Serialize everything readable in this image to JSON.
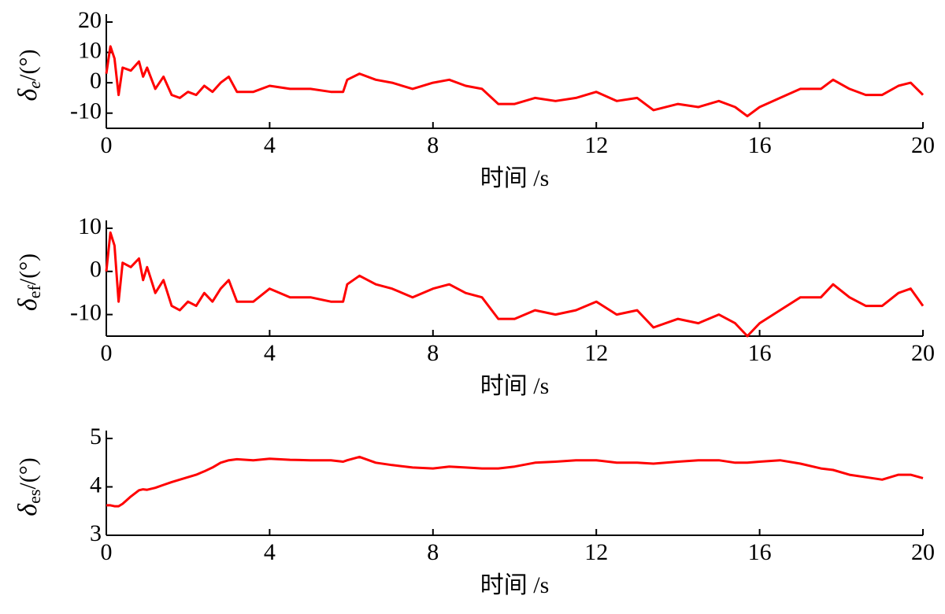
{
  "chart_data": [
    {
      "type": "line",
      "ylabel_symbol": "δ",
      "ylabel_subscript": "e",
      "ylabel_unit": "/(°)",
      "xlabel": "时间 /s",
      "xlim": [
        0,
        20
      ],
      "xticks": [
        0,
        4,
        8,
        12,
        16,
        20
      ],
      "ylim": [
        -15,
        20
      ],
      "yticks": [
        -10,
        0,
        10,
        20
      ],
      "x": [
        0,
        0.1,
        0.2,
        0.3,
        0.4,
        0.6,
        0.8,
        0.9,
        1.0,
        1.2,
        1.4,
        1.6,
        1.8,
        2.0,
        2.2,
        2.4,
        2.6,
        2.8,
        3.0,
        3.2,
        3.6,
        4.0,
        4.5,
        5.0,
        5.5,
        5.8,
        5.9,
        6.2,
        6.6,
        7.0,
        7.5,
        8.0,
        8.4,
        8.8,
        9.2,
        9.6,
        10.0,
        10.5,
        11.0,
        11.5,
        12.0,
        12.5,
        13.0,
        13.4,
        14.0,
        14.5,
        15.0,
        15.4,
        15.7,
        16.0,
        16.5,
        17.0,
        17.5,
        17.8,
        18.2,
        18.6,
        19.0,
        19.4,
        19.7,
        20.0
      ],
      "series": [
        {
          "color": "#ff0000",
          "values": [
            3,
            12,
            8,
            -4,
            5,
            4,
            7,
            2,
            5,
            -2,
            2,
            -4,
            -5,
            -3,
            -4,
            -1,
            -3,
            0,
            2,
            -3,
            -3,
            -1,
            -2,
            -2,
            -3,
            -3,
            1,
            3,
            1,
            0,
            -2,
            0,
            1,
            -1,
            -2,
            -7,
            -7,
            -5,
            -6,
            -5,
            -3,
            -6,
            -5,
            -9,
            -7,
            -8,
            -6,
            -8,
            -11,
            -8,
            -5,
            -2,
            -2,
            1,
            -2,
            -4,
            -4,
            -1,
            0,
            -4
          ]
        }
      ]
    },
    {
      "type": "line",
      "ylabel_symbol": "δ",
      "ylabel_subscript": "ef",
      "ylabel_unit": "/(°)",
      "xlabel": "时间 /s",
      "xlim": [
        0,
        20
      ],
      "xticks": [
        0,
        4,
        8,
        12,
        16,
        20
      ],
      "ylim": [
        -15,
        10
      ],
      "yticks": [
        -10,
        0,
        10
      ],
      "x": [
        0,
        0.1,
        0.2,
        0.3,
        0.4,
        0.6,
        0.8,
        0.9,
        1.0,
        1.2,
        1.4,
        1.6,
        1.8,
        2.0,
        2.2,
        2.4,
        2.6,
        2.8,
        3.0,
        3.2,
        3.6,
        4.0,
        4.5,
        5.0,
        5.5,
        5.8,
        5.9,
        6.2,
        6.6,
        7.0,
        7.5,
        8.0,
        8.4,
        8.8,
        9.2,
        9.6,
        10.0,
        10.5,
        11.0,
        11.5,
        12.0,
        12.5,
        13.0,
        13.4,
        14.0,
        14.5,
        15.0,
        15.4,
        15.7,
        16.0,
        16.5,
        17.0,
        17.5,
        17.8,
        18.2,
        18.6,
        19.0,
        19.4,
        19.7,
        20.0
      ],
      "series": [
        {
          "color": "#ff0000",
          "values": [
            0,
            9,
            6,
            -7,
            2,
            1,
            3,
            -2,
            1,
            -5,
            -2,
            -8,
            -9,
            -7,
            -8,
            -5,
            -7,
            -4,
            -2,
            -7,
            -7,
            -4,
            -6,
            -6,
            -7,
            -7,
            -3,
            -1,
            -3,
            -4,
            -6,
            -4,
            -3,
            -5,
            -6,
            -11,
            -11,
            -9,
            -10,
            -9,
            -7,
            -10,
            -9,
            -13,
            -11,
            -12,
            -10,
            -12,
            -15,
            -12,
            -9,
            -6,
            -6,
            -3,
            -6,
            -8,
            -8,
            -5,
            -4,
            -8
          ]
        }
      ]
    },
    {
      "type": "line",
      "ylabel_symbol": "δ",
      "ylabel_subscript": "es",
      "ylabel_unit": "/(°)",
      "xlabel": "时间 /s",
      "xlim": [
        0,
        20
      ],
      "xticks": [
        0,
        4,
        8,
        12,
        16,
        20
      ],
      "ylim": [
        3,
        5
      ],
      "yticks": [
        3,
        4,
        5
      ],
      "x": [
        0,
        0.1,
        0.2,
        0.3,
        0.4,
        0.6,
        0.8,
        0.9,
        1.0,
        1.2,
        1.4,
        1.6,
        1.8,
        2.0,
        2.2,
        2.4,
        2.6,
        2.8,
        3.0,
        3.2,
        3.6,
        4.0,
        4.5,
        5.0,
        5.5,
        5.8,
        5.9,
        6.2,
        6.6,
        7.0,
        7.5,
        8.0,
        8.4,
        8.8,
        9.2,
        9.6,
        10.0,
        10.5,
        11.0,
        11.5,
        12.0,
        12.5,
        13.0,
        13.4,
        14.0,
        14.5,
        15.0,
        15.4,
        15.7,
        16.0,
        16.5,
        17.0,
        17.5,
        17.8,
        18.2,
        18.6,
        19.0,
        19.4,
        19.7,
        20.0
      ],
      "series": [
        {
          "color": "#ff0000",
          "values": [
            3.62,
            3.62,
            3.6,
            3.6,
            3.65,
            3.8,
            3.93,
            3.95,
            3.94,
            3.98,
            4.04,
            4.1,
            4.15,
            4.2,
            4.25,
            4.32,
            4.4,
            4.5,
            4.55,
            4.57,
            4.55,
            4.58,
            4.56,
            4.55,
            4.55,
            4.52,
            4.55,
            4.62,
            4.5,
            4.45,
            4.4,
            4.38,
            4.42,
            4.4,
            4.38,
            4.38,
            4.42,
            4.5,
            4.52,
            4.55,
            4.55,
            4.5,
            4.5,
            4.48,
            4.52,
            4.55,
            4.55,
            4.5,
            4.5,
            4.52,
            4.55,
            4.48,
            4.38,
            4.35,
            4.25,
            4.2,
            4.15,
            4.25,
            4.25,
            4.18
          ]
        }
      ]
    }
  ]
}
